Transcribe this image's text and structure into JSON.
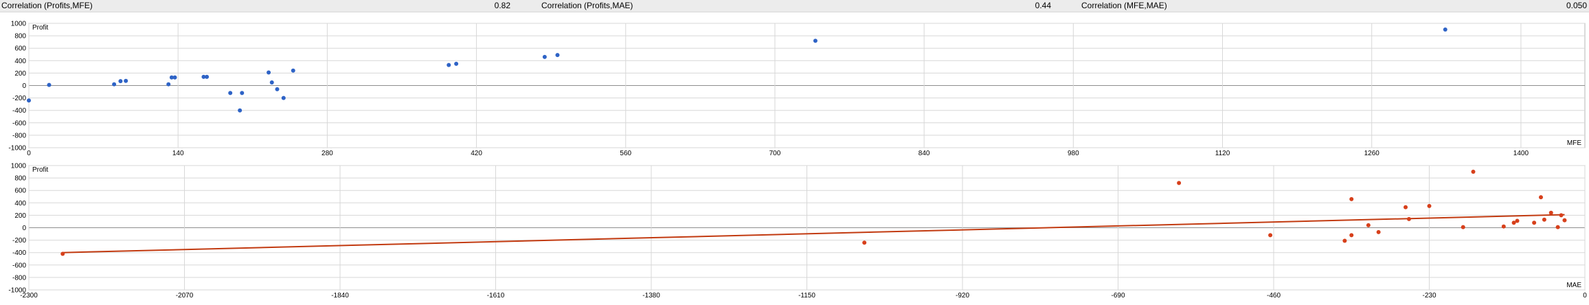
{
  "correlations": [
    {
      "label": "Correlation (Profits,MFE)",
      "value": "0.82"
    },
    {
      "label": "Correlation (Profits,MAE)",
      "value": "0.44"
    },
    {
      "label": "Correlation (MFE,MAE)",
      "value": "0.050"
    }
  ],
  "colors": {
    "mfe_points": "#2e63c6",
    "mae_points": "#d7401b",
    "trend": "#c23a10",
    "grid": "#d7d7d7",
    "zero": "#8e8e8e"
  },
  "chart_data": [
    {
      "type": "scatter",
      "title": "",
      "ylabel": "Profit",
      "xlabel": "MFE",
      "xlim": [
        0,
        1460
      ],
      "ylim": [
        -1000,
        1000
      ],
      "xticks": [
        "0",
        "140",
        "280",
        "420",
        "560",
        "700",
        "840",
        "980",
        "1120",
        "1260",
        "1400"
      ],
      "yticks": [
        "1000",
        "800",
        "600",
        "400",
        "200",
        "0",
        "-200",
        "-400",
        "-600",
        "-800",
        "-1000"
      ],
      "series": [
        {
          "points": [
            [
              0,
              -240
            ],
            [
              19,
              10
            ],
            [
              80,
              20
            ],
            [
              86,
              70
            ],
            [
              91,
              75
            ],
            [
              131,
              20
            ],
            [
              134,
              130
            ],
            [
              137,
              130
            ],
            [
              164,
              140
            ],
            [
              167,
              140
            ],
            [
              189,
              -120
            ],
            [
              198,
              -400
            ],
            [
              200,
              -120
            ],
            [
              225,
              210
            ],
            [
              228,
              50
            ],
            [
              233,
              -60
            ],
            [
              239,
              -200
            ],
            [
              248,
              240
            ],
            [
              394,
              330
            ],
            [
              401,
              350
            ],
            [
              484,
              460
            ],
            [
              496,
              490
            ],
            [
              738,
              720
            ],
            [
              1329,
              900
            ]
          ]
        }
      ]
    },
    {
      "type": "scatter",
      "title": "",
      "ylabel": "Profit",
      "xlabel": "MAE",
      "xlim": [
        -2300,
        0
      ],
      "ylim": [
        -1000,
        1000
      ],
      "xticks": [
        "-2300",
        "-2070",
        "-1840",
        "-1610",
        "-1380",
        "-1150",
        "-920",
        "-690",
        "-460",
        "-230",
        "0"
      ],
      "yticks": [
        "1000",
        "800",
        "600",
        "400",
        "200",
        "0",
        "-200",
        "-400",
        "-600",
        "-800",
        "-1000"
      ],
      "trendline": [
        [
          -2250,
          -400
        ],
        [
          -30,
          210
        ]
      ],
      "series": [
        {
          "points": [
            [
              -2250,
              -420
            ],
            [
              -1065,
              -240
            ],
            [
              -600,
              720
            ],
            [
              -465,
              -120
            ],
            [
              -355,
              -210
            ],
            [
              -345,
              460
            ],
            [
              -345,
              -120
            ],
            [
              -320,
              40
            ],
            [
              -305,
              -70
            ],
            [
              -265,
              330
            ],
            [
              -260,
              140
            ],
            [
              -230,
              350
            ],
            [
              -180,
              10
            ],
            [
              -165,
              900
            ],
            [
              -120,
              20
            ],
            [
              -105,
              80
            ],
            [
              -100,
              110
            ],
            [
              -75,
              80
            ],
            [
              -65,
              490
            ],
            [
              -60,
              130
            ],
            [
              -50,
              240
            ],
            [
              -40,
              10
            ],
            [
              -35,
              200
            ],
            [
              -30,
              120
            ]
          ]
        }
      ]
    }
  ]
}
